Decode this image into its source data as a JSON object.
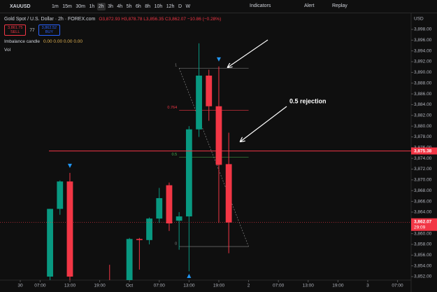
{
  "toolbar": {
    "symbol": "XAUUSD",
    "timeframes": [
      "1m",
      "15m",
      "30m",
      "1h",
      "2h",
      "3h",
      "4h",
      "5h",
      "6h",
      "8h",
      "10h",
      "12h",
      "D",
      "W"
    ],
    "active": "2h",
    "indicators": "Indicators",
    "alert": "Alert",
    "replay": "Replay"
  },
  "legend": {
    "instrument": "Gold Spot / U.S. Dollar · 2h · FOREX.com",
    "ohlc": "O3,872.93 H3,878.78 L3,856.35 C3,862.07 −10.86 (−0.28%)",
    "sell_price": "3,861.75",
    "sell": "SELL",
    "spread": "77",
    "buy_price": "3,862.52",
    "buy": "BUY",
    "indicator": "Imbalance candle",
    "indicator_values": "0.00 0.00 0.00 0.00",
    "volume": "Vol"
  },
  "chart_data": {
    "type": "candlestick",
    "currency": "USD",
    "annotation": "0.5 rejection",
    "x": [
      0,
      1,
      2,
      3,
      4,
      5,
      6,
      7,
      8,
      9,
      10,
      11,
      12,
      13,
      14,
      15,
      16,
      17,
      18
    ],
    "open": [
      3852,
      3864.6,
      3869.7,
      null,
      null,
      null,
      3851,
      null,
      3851,
      3859.0,
      3858.8,
      3862.8,
      3869.0,
      3862.4,
      3863.2,
      3879.4,
      3889.4,
      3883.7,
      3872.93
    ],
    "high": [
      3864.6,
      3869.9,
      3871.3,
      null,
      null,
      null,
      3854.2,
      null,
      3859.2,
      3859.2,
      3863.0,
      3868.5,
      3869.5,
      3864.0,
      3880.0,
      3895.4,
      3890.5,
      3891.1,
      3878.78
    ],
    "low": [
      3851,
      3863.5,
      3851,
      null,
      null,
      null,
      3849,
      null,
      3850,
      3853.3,
      3858.0,
      3862.0,
      3860.5,
      3857.0,
      3853.0,
      3878.0,
      3881.0,
      3862.0,
      3856.35
    ],
    "close": [
      3864.6,
      3869.7,
      3852,
      null,
      null,
      null,
      3850.5,
      null,
      3859.0,
      3858.8,
      3862.8,
      3866.6,
      3861.9,
      3863.2,
      3879.4,
      3889.4,
      3883.7,
      3872.8,
      3862.07
    ],
    "up_color": "#089981",
    "down_color": "#f23645",
    "xlim": [
      -5.04,
      36.37
    ],
    "ylim": [
      3851.35,
      3899.04
    ],
    "xticks": [
      {
        "value": -3,
        "label": "30"
      },
      {
        "value": -1,
        "label": "07:00"
      },
      {
        "value": 2,
        "label": "13:00"
      },
      {
        "value": 5,
        "label": "19:00"
      },
      {
        "value": 8,
        "label": "Oct"
      },
      {
        "value": 11,
        "label": "07:00"
      },
      {
        "value": 14,
        "label": "13:00"
      },
      {
        "value": 17,
        "label": "19:00"
      },
      {
        "value": 20,
        "label": "2"
      },
      {
        "value": 23,
        "label": "07:00"
      },
      {
        "value": 26,
        "label": "13:00"
      },
      {
        "value": 29,
        "label": "19:00"
      },
      {
        "value": 32,
        "label": "3"
      },
      {
        "value": 35,
        "label": "07:00"
      }
    ],
    "yticks": [
      {
        "value": 3852,
        "label": "3,852.00"
      },
      {
        "value": 3854,
        "label": "3,854.00"
      },
      {
        "value": 3856,
        "label": "3,856.00"
      },
      {
        "value": 3858,
        "label": "3,858.00"
      },
      {
        "value": 3860,
        "label": "3,860.00"
      },
      {
        "value": 3862,
        "label": "3,862.00"
      },
      {
        "value": 3864,
        "label": "3,864.00"
      },
      {
        "value": 3866,
        "label": "3,866.00"
      },
      {
        "value": 3868,
        "label": "3,868.00"
      },
      {
        "value": 3870,
        "label": "3,870.00"
      },
      {
        "value": 3872,
        "label": "3,872.00"
      },
      {
        "value": 3874,
        "label": "3,874.00"
      },
      {
        "value": 3876,
        "label": "3,876.00"
      },
      {
        "value": 3878,
        "label": "3,878.00"
      },
      {
        "value": 3880,
        "label": "3,880.00"
      },
      {
        "value": 3882,
        "label": "3,882.00"
      },
      {
        "value": 3884,
        "label": "3,884.00"
      },
      {
        "value": 3886,
        "label": "3,886.00"
      },
      {
        "value": 3888,
        "label": "3,888.00"
      },
      {
        "value": 3890,
        "label": "3,890.00"
      },
      {
        "value": 3892,
        "label": "3,892.00"
      },
      {
        "value": 3894,
        "label": "3,894.00"
      },
      {
        "value": 3896,
        "label": "3,896.00"
      },
      {
        "value": 3898,
        "label": "3,898.00"
      }
    ],
    "price_line": {
      "value": 3875.38,
      "label": "3,875.38",
      "color": "#f23645"
    },
    "last_price": {
      "value": 3862.07,
      "label": "3,862.07",
      "countdown": "29:09"
    },
    "fib": {
      "x": [
        13,
        20
      ],
      "levels": [
        1,
        0.764,
        0.5,
        0
      ],
      "prices": [
        3890.8,
        3882.96,
        3874.2,
        3857.6
      ]
    },
    "signals": [
      {
        "x": 2,
        "side": "above"
      },
      {
        "x": 17,
        "side": "above"
      },
      {
        "x": 14,
        "side": "below"
      }
    ],
    "signal_color": "#2196f3",
    "grid": false
  }
}
